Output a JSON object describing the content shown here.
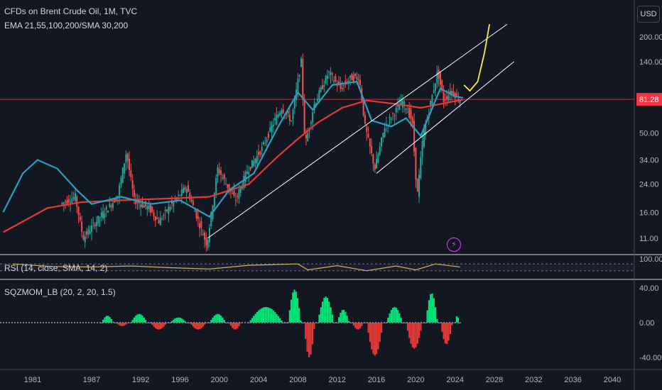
{
  "header": {
    "title": "CFDs on Brent Crude Oil, 1M, TVC",
    "subtitle": "EMA 21,55,100,200/SMA 30,200",
    "currency_button": "USD",
    "flash_icon": "lightning-icon"
  },
  "price_axis": {
    "ticks": [
      "200.00",
      "140.00",
      "81.28",
      "50.00",
      "34.00",
      "24.00",
      "16.00",
      "11.00"
    ],
    "current_price": "81.28",
    "current_price_color": "#f23645"
  },
  "rsi_panel": {
    "label": "RSI (14, close, SMA, 14, 2)",
    "tick": "100.00"
  },
  "sqz_panel": {
    "label": "SQZMOM_LB (20, 2, 20, 1.5)",
    "ticks": [
      "40.00",
      "0.00",
      "-40.00"
    ]
  },
  "time_axis": {
    "ticks": [
      "1981",
      "1987",
      "1992",
      "1996",
      "2000",
      "2004",
      "2008",
      "2012",
      "2016",
      "2020",
      "2024",
      "2028",
      "2032",
      "2036",
      "2040"
    ]
  },
  "colors": {
    "background": "#131722",
    "up": "#26a69a",
    "down": "#ef5350",
    "ema": "#2a9fc1",
    "sma200": "#e53935",
    "projection": "#ffeb3b",
    "channel": "#ffffff",
    "rsi": "#c9b458",
    "sqz_up": "#00e676",
    "sqz_down": "#e53935"
  },
  "chart_data": [
    {
      "type": "candlestick",
      "log_scale": true,
      "ylim": [
        9,
        300
      ],
      "xlim": [
        1978,
        2043
      ],
      "price_points": [
        [
          1984,
          18
        ],
        [
          1985.5,
          20
        ],
        [
          1986.3,
          11
        ],
        [
          1988,
          15
        ],
        [
          1989.8,
          20
        ],
        [
          1990.7,
          38
        ],
        [
          1991.5,
          19
        ],
        [
          1993,
          17
        ],
        [
          1994,
          14
        ],
        [
          1995,
          17
        ],
        [
          1996.8,
          23
        ],
        [
          1998.9,
          10
        ],
        [
          2000,
          30
        ],
        [
          2001.8,
          19
        ],
        [
          2003,
          29
        ],
        [
          2004.5,
          40
        ],
        [
          2005.8,
          60
        ],
        [
          2006.5,
          72
        ],
        [
          2007.5,
          60
        ],
        [
          2008.5,
          140
        ],
        [
          2008.9,
          42
        ],
        [
          2009.8,
          75
        ],
        [
          2011.3,
          120
        ],
        [
          2012.5,
          95
        ],
        [
          2013.5,
          110
        ],
        [
          2014.4,
          112
        ],
        [
          2015,
          55
        ],
        [
          2016,
          30
        ],
        [
          2017,
          55
        ],
        [
          2018.8,
          80
        ],
        [
          2019.8,
          60
        ],
        [
          2020.3,
          20
        ],
        [
          2020.9,
          48
        ],
        [
          2022.4,
          122
        ],
        [
          2023,
          80
        ],
        [
          2023.8,
          92
        ],
        [
          2024.6,
          81.28
        ]
      ],
      "ema_points": [
        [
          1978,
          16
        ],
        [
          1980,
          28
        ],
        [
          1981.5,
          34
        ],
        [
          1983.5,
          30
        ],
        [
          1985.5,
          22
        ],
        [
          1987,
          18
        ],
        [
          1990,
          20
        ],
        [
          1993,
          18
        ],
        [
          1996,
          19
        ],
        [
          1999,
          15
        ],
        [
          2001,
          22
        ],
        [
          2003.5,
          28
        ],
        [
          2006,
          55
        ],
        [
          2008,
          90
        ],
        [
          2009.5,
          70
        ],
        [
          2011.5,
          100
        ],
        [
          2014,
          105
        ],
        [
          2015.5,
          60
        ],
        [
          2017.5,
          55
        ],
        [
          2019,
          62
        ],
        [
          2020.5,
          48
        ],
        [
          2022.5,
          95
        ],
        [
          2024,
          85
        ],
        [
          2024.8,
          83
        ]
      ],
      "sma200_points": [
        [
          1978,
          12
        ],
        [
          1980,
          14
        ],
        [
          1982.5,
          17
        ],
        [
          1986,
          18.5
        ],
        [
          1990,
          19
        ],
        [
          1995,
          19.5
        ],
        [
          1999,
          20
        ],
        [
          2003,
          24
        ],
        [
          2006,
          36
        ],
        [
          2008,
          46
        ],
        [
          2010,
          58
        ],
        [
          2012.5,
          72
        ],
        [
          2015,
          80
        ],
        [
          2018,
          76
        ],
        [
          2020.5,
          72
        ],
        [
          2022.5,
          76
        ],
        [
          2024.8,
          81
        ]
      ],
      "projection_points": [
        [
          2024.9,
          100
        ],
        [
          2025.5,
          92
        ],
        [
          2026.3,
          105
        ],
        [
          2027,
          160
        ],
        [
          2027.5,
          240
        ]
      ],
      "channel_upper": [
        [
          2009.5,
          28
        ],
        [
          2029.5,
          260
        ]
      ],
      "channel_lower": [
        [
          1998.8,
          11
        ],
        [
          2029.5,
          260
        ]
      ],
      "channel_lower2": [
        [
          2016,
          28
        ],
        [
          2030,
          140
        ]
      ],
      "current_line": 81.28
    },
    {
      "type": "line",
      "name": "RSI",
      "ylim": [
        0,
        100
      ],
      "points": [
        [
          1979,
          70
        ],
        [
          1983,
          55
        ],
        [
          1987,
          52
        ],
        [
          1991,
          58
        ],
        [
          1995,
          48
        ],
        [
          1999,
          40
        ],
        [
          2003,
          62
        ],
        [
          2008,
          70
        ],
        [
          2009,
          35
        ],
        [
          2012,
          60
        ],
        [
          2015,
          30
        ],
        [
          2018,
          58
        ],
        [
          2020,
          35
        ],
        [
          2022,
          70
        ],
        [
          2024.5,
          52
        ]
      ]
    },
    {
      "type": "bar",
      "name": "SQZMOM",
      "ylim": [
        -50,
        50
      ],
      "segments": [
        [
          1988,
          1989.5,
          8
        ],
        [
          1989.5,
          1991,
          -4
        ],
        [
          1991,
          1993,
          10
        ],
        [
          1993,
          1995,
          -8
        ],
        [
          1995,
          1997,
          6
        ],
        [
          1997,
          1999,
          -8
        ],
        [
          1999,
          2001,
          10
        ],
        [
          2001,
          2002.5,
          -8
        ],
        [
          2003,
          2007,
          18
        ],
        [
          2007,
          2008.6,
          38
        ],
        [
          2008.6,
          2010,
          -40
        ],
        [
          2010,
          2012,
          30
        ],
        [
          2012,
          2013.5,
          15
        ],
        [
          2013.5,
          2015,
          -8
        ],
        [
          2015,
          2017,
          -38
        ],
        [
          2017,
          2019,
          18
        ],
        [
          2019,
          2021,
          -30
        ],
        [
          2021,
          2022.5,
          34
        ],
        [
          2022.5,
          2024,
          -25
        ],
        [
          2024,
          2024.6,
          8
        ]
      ]
    }
  ]
}
